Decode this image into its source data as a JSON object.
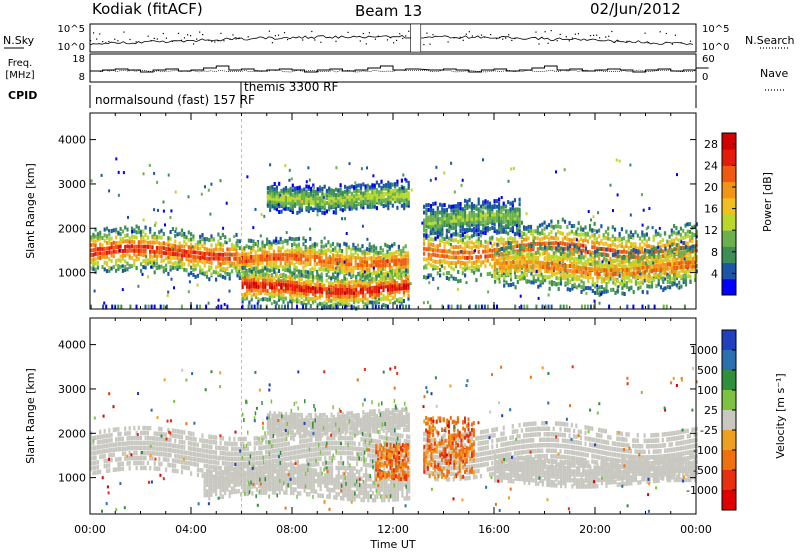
{
  "header": {
    "station": "Kodiak (fitACF)",
    "beam": "Beam 13",
    "date": "02/Jun/2012"
  },
  "left_labels": {
    "nsky": "N.Sky",
    "freq_line1": "Freq.",
    "freq_line2": "[MHz]",
    "cpid": "CPID"
  },
  "right_labels": {
    "nsearch": "N.Search",
    "nave": "Nave"
  },
  "strip_ticks": {
    "noise_left": [
      "10^5",
      "10^0"
    ],
    "noise_right": [
      "10^5",
      "10^0"
    ],
    "freq_left": [
      "18",
      "8"
    ],
    "nave_right": [
      "60",
      "0"
    ]
  },
  "cpid_segments": [
    "normalsound (fast) 157 RF",
    "themis 3300 RF"
  ],
  "chart_data": [
    {
      "type": "heatmap",
      "title": "Beam 13",
      "xlabel": "Time UT",
      "ylabel": "Slant Range [km]",
      "x_ticks": [
        "00:00",
        "04:00",
        "08:00",
        "12:00",
        "16:00",
        "20:00",
        "00:00"
      ],
      "y_ticks": [
        "1000",
        "2000",
        "3000",
        "4000"
      ],
      "xlim_hours": [
        0,
        24
      ],
      "ylim_km": [
        180,
        4600
      ],
      "colorbar": {
        "label": "Power [dB]",
        "ticks": [
          "4",
          "8",
          "12",
          "16",
          "20",
          "24",
          "28"
        ],
        "range": [
          0,
          30
        ],
        "colors": [
          "#0000ff",
          "#1a55a6",
          "#3b8f55",
          "#6ab04c",
          "#b8d82a",
          "#f0c020",
          "#f39415",
          "#ef5a10",
          "#e41a0a",
          "#d30000"
        ]
      },
      "data_gap_hours": [
        12.7,
        13.1
      ],
      "cpid_switch_hour": 6.0,
      "bands": [
        {
          "start": 0.0,
          "end": 5.8,
          "center_km": 1450,
          "width_km": 260,
          "value_db": 26
        },
        {
          "start": 5.8,
          "end": 12.6,
          "center_km": 1280,
          "width_km": 220,
          "value_db": 24
        },
        {
          "start": 6.0,
          "end": 12.6,
          "center_km": 650,
          "width_km": 200,
          "value_db": 28
        },
        {
          "start": 7.0,
          "end": 12.6,
          "center_km": 2700,
          "width_km": 160,
          "value_db": 14
        },
        {
          "start": 13.1,
          "end": 24.0,
          "center_km": 1500,
          "width_km": 300,
          "value_db": 24
        },
        {
          "start": 16.0,
          "end": 24.0,
          "center_km": 1100,
          "width_km": 260,
          "value_db": 22
        },
        {
          "start": 13.1,
          "end": 17.0,
          "center_km": 2200,
          "width_km": 200,
          "value_db": 12
        }
      ]
    },
    {
      "type": "heatmap",
      "xlabel": "Time UT",
      "ylabel": "Slant Range [km]",
      "x_ticks": [
        "00:00",
        "04:00",
        "08:00",
        "12:00",
        "16:00",
        "20:00",
        "00:00"
      ],
      "y_ticks": [
        "1000",
        "2000",
        "3000",
        "4000"
      ],
      "xlim_hours": [
        0,
        24
      ],
      "ylim_km": [
        180,
        4600
      ],
      "colorbar": {
        "label": "Velocity [m s^-1]",
        "ticks": [
          "1000",
          "500",
          "100",
          "25",
          "-25",
          "-100",
          "-500",
          "-1000"
        ],
        "colors": [
          "#2040c0",
          "#2a6fb0",
          "#2e8f3c",
          "#7dc242",
          "#c8c8c0",
          "#f0a020",
          "#f07010",
          "#e83010",
          "#e00000"
        ]
      },
      "data_gap_hours": [
        12.7,
        13.1
      ],
      "ground_scatter_bands": [
        {
          "start": 0.0,
          "end": 12.6,
          "center_km": 1550,
          "width_km": 500
        },
        {
          "start": 4.5,
          "end": 12.6,
          "center_km": 900,
          "width_km": 350
        },
        {
          "start": 7.0,
          "end": 12.6,
          "center_km": 2250,
          "width_km": 250
        },
        {
          "start": 13.1,
          "end": 24.0,
          "center_km": 1600,
          "width_km": 550
        },
        {
          "start": 16.0,
          "end": 24.0,
          "center_km": 1150,
          "width_km": 300
        }
      ],
      "velocity_patches": [
        {
          "start": 11.3,
          "end": 12.6,
          "low_km": 1000,
          "high_km": 1800,
          "velocity": -500
        },
        {
          "start": 13.2,
          "end": 15.2,
          "low_km": 1050,
          "high_km": 2400,
          "velocity": -300
        }
      ]
    }
  ]
}
